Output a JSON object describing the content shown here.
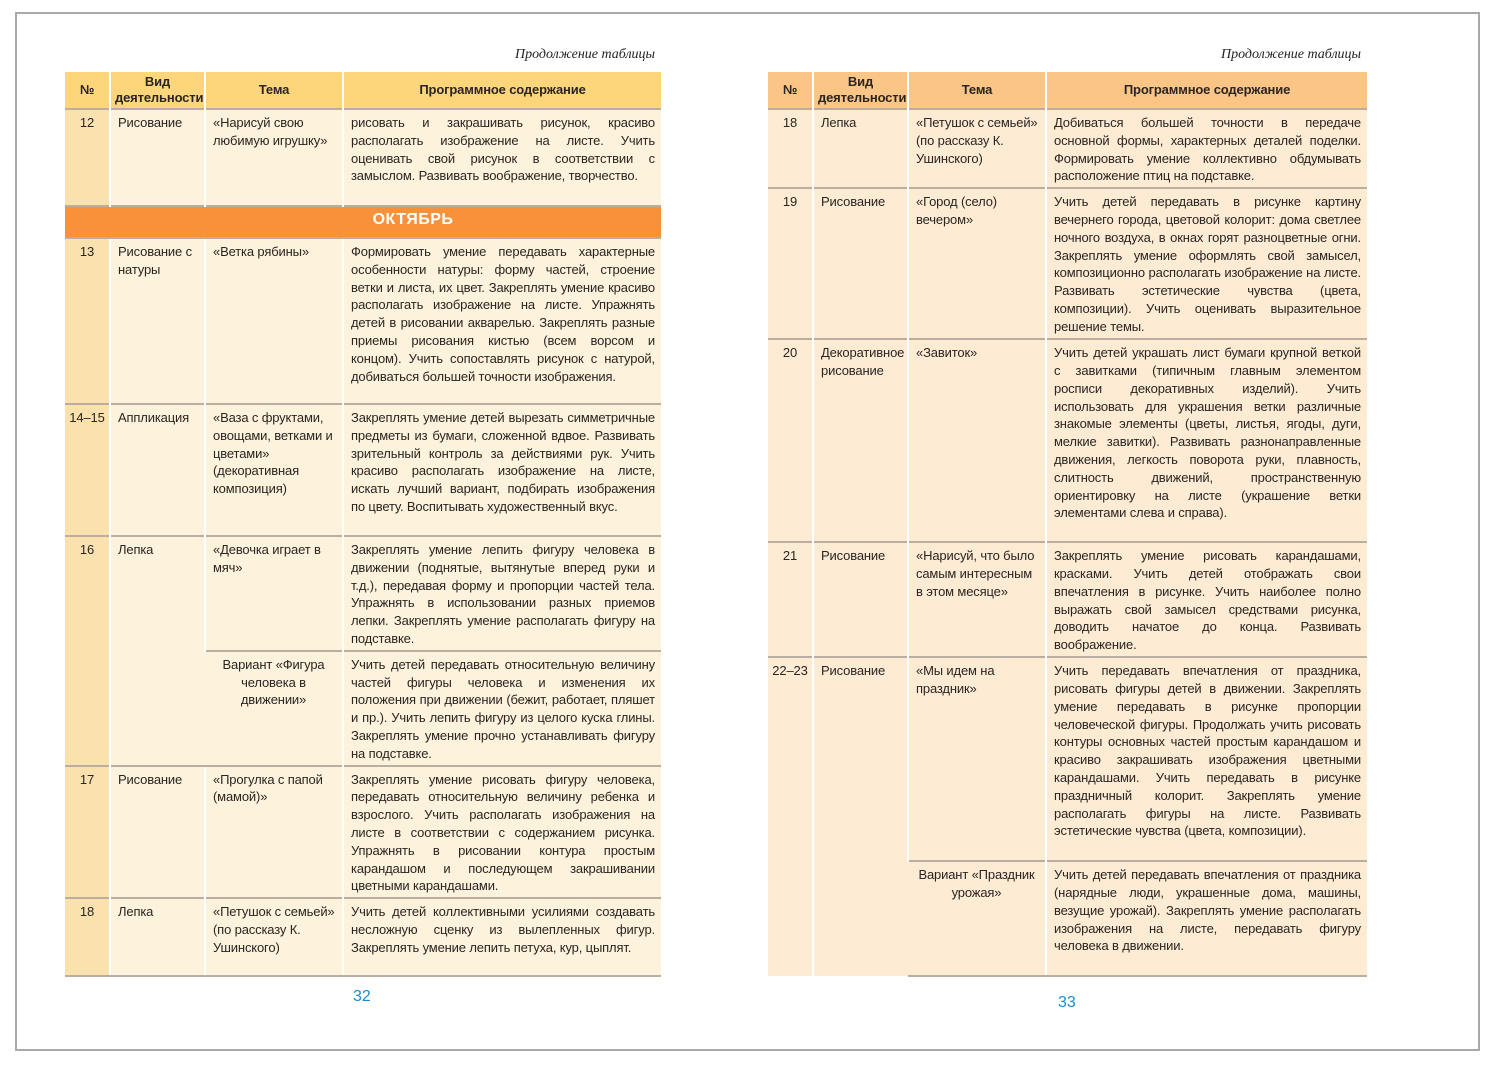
{
  "continuation_label": "Продолжение таблицы",
  "headers": [
    "№",
    "Вид деятельности",
    "Тема",
    "Программное содержание"
  ],
  "colors": {
    "month_bar": "#f7923b",
    "left_header": "#fdd67c",
    "right_header": "#fbc585",
    "page_number": "#1b8ccd"
  },
  "left_page": {
    "page_number": "32",
    "rows": [
      {
        "num": "12",
        "activity": "Рисование",
        "topic": "«Нарисуй свою любимую игрушку»",
        "content": "рисовать и закрашивать рисунок, красиво располагать изображение на листе. Учить оценивать свой рисунок в соответствии с замыслом. Развивать воображение, творчество."
      },
      {
        "month": "ОКТЯБРЬ"
      },
      {
        "num": "13",
        "activity": "Рисование с натуры",
        "topic": "«Ветка рябины»",
        "content": "Формировать умение передавать характерные особенности натуры: форму частей, строение ветки и листа, их цвет. Закреплять умение красиво располагать изображение на листе. Упражнять детей в рисовании акварелью. Закреплять разные приемы рисования кистью (всем ворсом и концом). Учить сопоставлять рисунок с натурой, добиваться большей точности изображения."
      },
      {
        "num": "14–15",
        "activity": "Аппликация",
        "topic": "«Ваза с фруктами, овощами, ветками и цветами» (декоративная композиция)",
        "content": "Закреплять умение детей вырезать симметричные предметы из бумаги, сложенной вдвое. Развивать зрительный контроль за действиями рук. Учить красиво располагать изображение на листе, искать лучший вариант, подбирать изображения по цвету. Воспитывать художественный вкус."
      },
      {
        "num": "16",
        "activity": "Лепка",
        "topic": "«Девочка играет в мяч»",
        "content": "Закреплять умение лепить фигуру человека в движении (поднятые, вытянутые вперед руки и т.д.), передавая форму и пропорции частей тела. Упражнять в использовании разных приемов лепки. Закреплять умение располагать фигуру на подставке.",
        "variant_topic": "Вариант «Фигура человека в движении»",
        "variant_content": "Учить детей передавать относительную величину частей фигуры человека и изменения их положения при движении (бежит, работает, пляшет и пр.). Учить лепить фигуру из целого куска глины. Закреплять умение прочно устанавливать фигуру на подставке."
      },
      {
        "num": "17",
        "activity": "Рисование",
        "topic": "«Прогулка с папой (мамой)»",
        "content": "Закреплять умение рисовать фигуру человека, передавать относительную величину ребенка и взрослого. Учить располагать изображения на листе в соответствии с содержанием рисунка. Упражнять в рисовании контура простым карандашом и последующем закрашивании цветными карандашами."
      },
      {
        "num": "18",
        "activity": "Лепка",
        "topic": "«Петушок с семьей» (по рассказу К. Ушинского)",
        "content": "Учить детей коллективными усилиями создавать несложную сценку из вылепленных фигур. Закреплять умение лепить петуха, кур, цыплят."
      }
    ]
  },
  "right_page": {
    "page_number": "33",
    "rows": [
      {
        "num": "18",
        "activity": "Лепка",
        "topic": "«Петушок с семьей» (по рассказу К. Ушинского)",
        "content": "Добиваться большей точности в передаче основной формы, характерных деталей поделки. Формировать умение коллективно обдумывать расположение птиц на подставке."
      },
      {
        "num": "19",
        "activity": "Рисование",
        "topic": "«Город (село) вечером»",
        "content": "Учить детей передавать в рисунке картину вечернего города, цветовой колорит: дома светлее ночного воздуха, в окнах горят разноцветные огни. Закреплять умение оформлять свой замысел, композиционно располагать изображение на листе. Развивать эстетические чувства (цвета, композиции). Учить оценивать выразительное решение темы."
      },
      {
        "num": "20",
        "activity": "Декоративное рисование",
        "topic": "«Завиток»",
        "content": "Учить детей украшать лист бумаги крупной веткой с завитками (типичным главным элементом росписи декоративных изделий). Учить использовать для украшения ветки различные знакомые элементы (цветы, листья, ягоды, дуги, мелкие завитки). Развивать разнонаправленные движения, легкость поворота руки, плавность, слитность движений, пространственную ориентировку на листе (украшение ветки элементами слева и справа)."
      },
      {
        "num": "21",
        "activity": "Рисование",
        "topic": "«Нарисуй, что было самым интересным в этом месяце»",
        "content": "Закреплять умение рисовать карандашами, красками. Учить детей отображать свои впечатления в рисунке. Учить наиболее полно выражать свой замысел средствами рисунка, доводить начатое до конца. Развивать воображение."
      },
      {
        "num": "22–23",
        "activity": "Рисование",
        "topic": "«Мы идем на праздник»",
        "content": "Учить передавать впечатления от праздника, рисовать фигуры детей в движении. Закреплять умение передавать в рисунке пропорции человеческой фигуры. Продолжать учить рисовать контуры основных частей простым карандашом и красиво закрашивать изображения цветными карандашами. Учить передавать в рисунке праздничный колорит. Закреплять умение располагать фигуры на листе. Развивать эстетические чувства (цвета, композиции).",
        "variant_topic": "Вариант «Праздник урожая»",
        "variant_content": "Учить детей передавать впечатления от праздника (нарядные люди, украшенные дома, машины, везущие урожай). Закреплять умение располагать изображения на листе, передавать фигуру человека в движении."
      }
    ]
  }
}
